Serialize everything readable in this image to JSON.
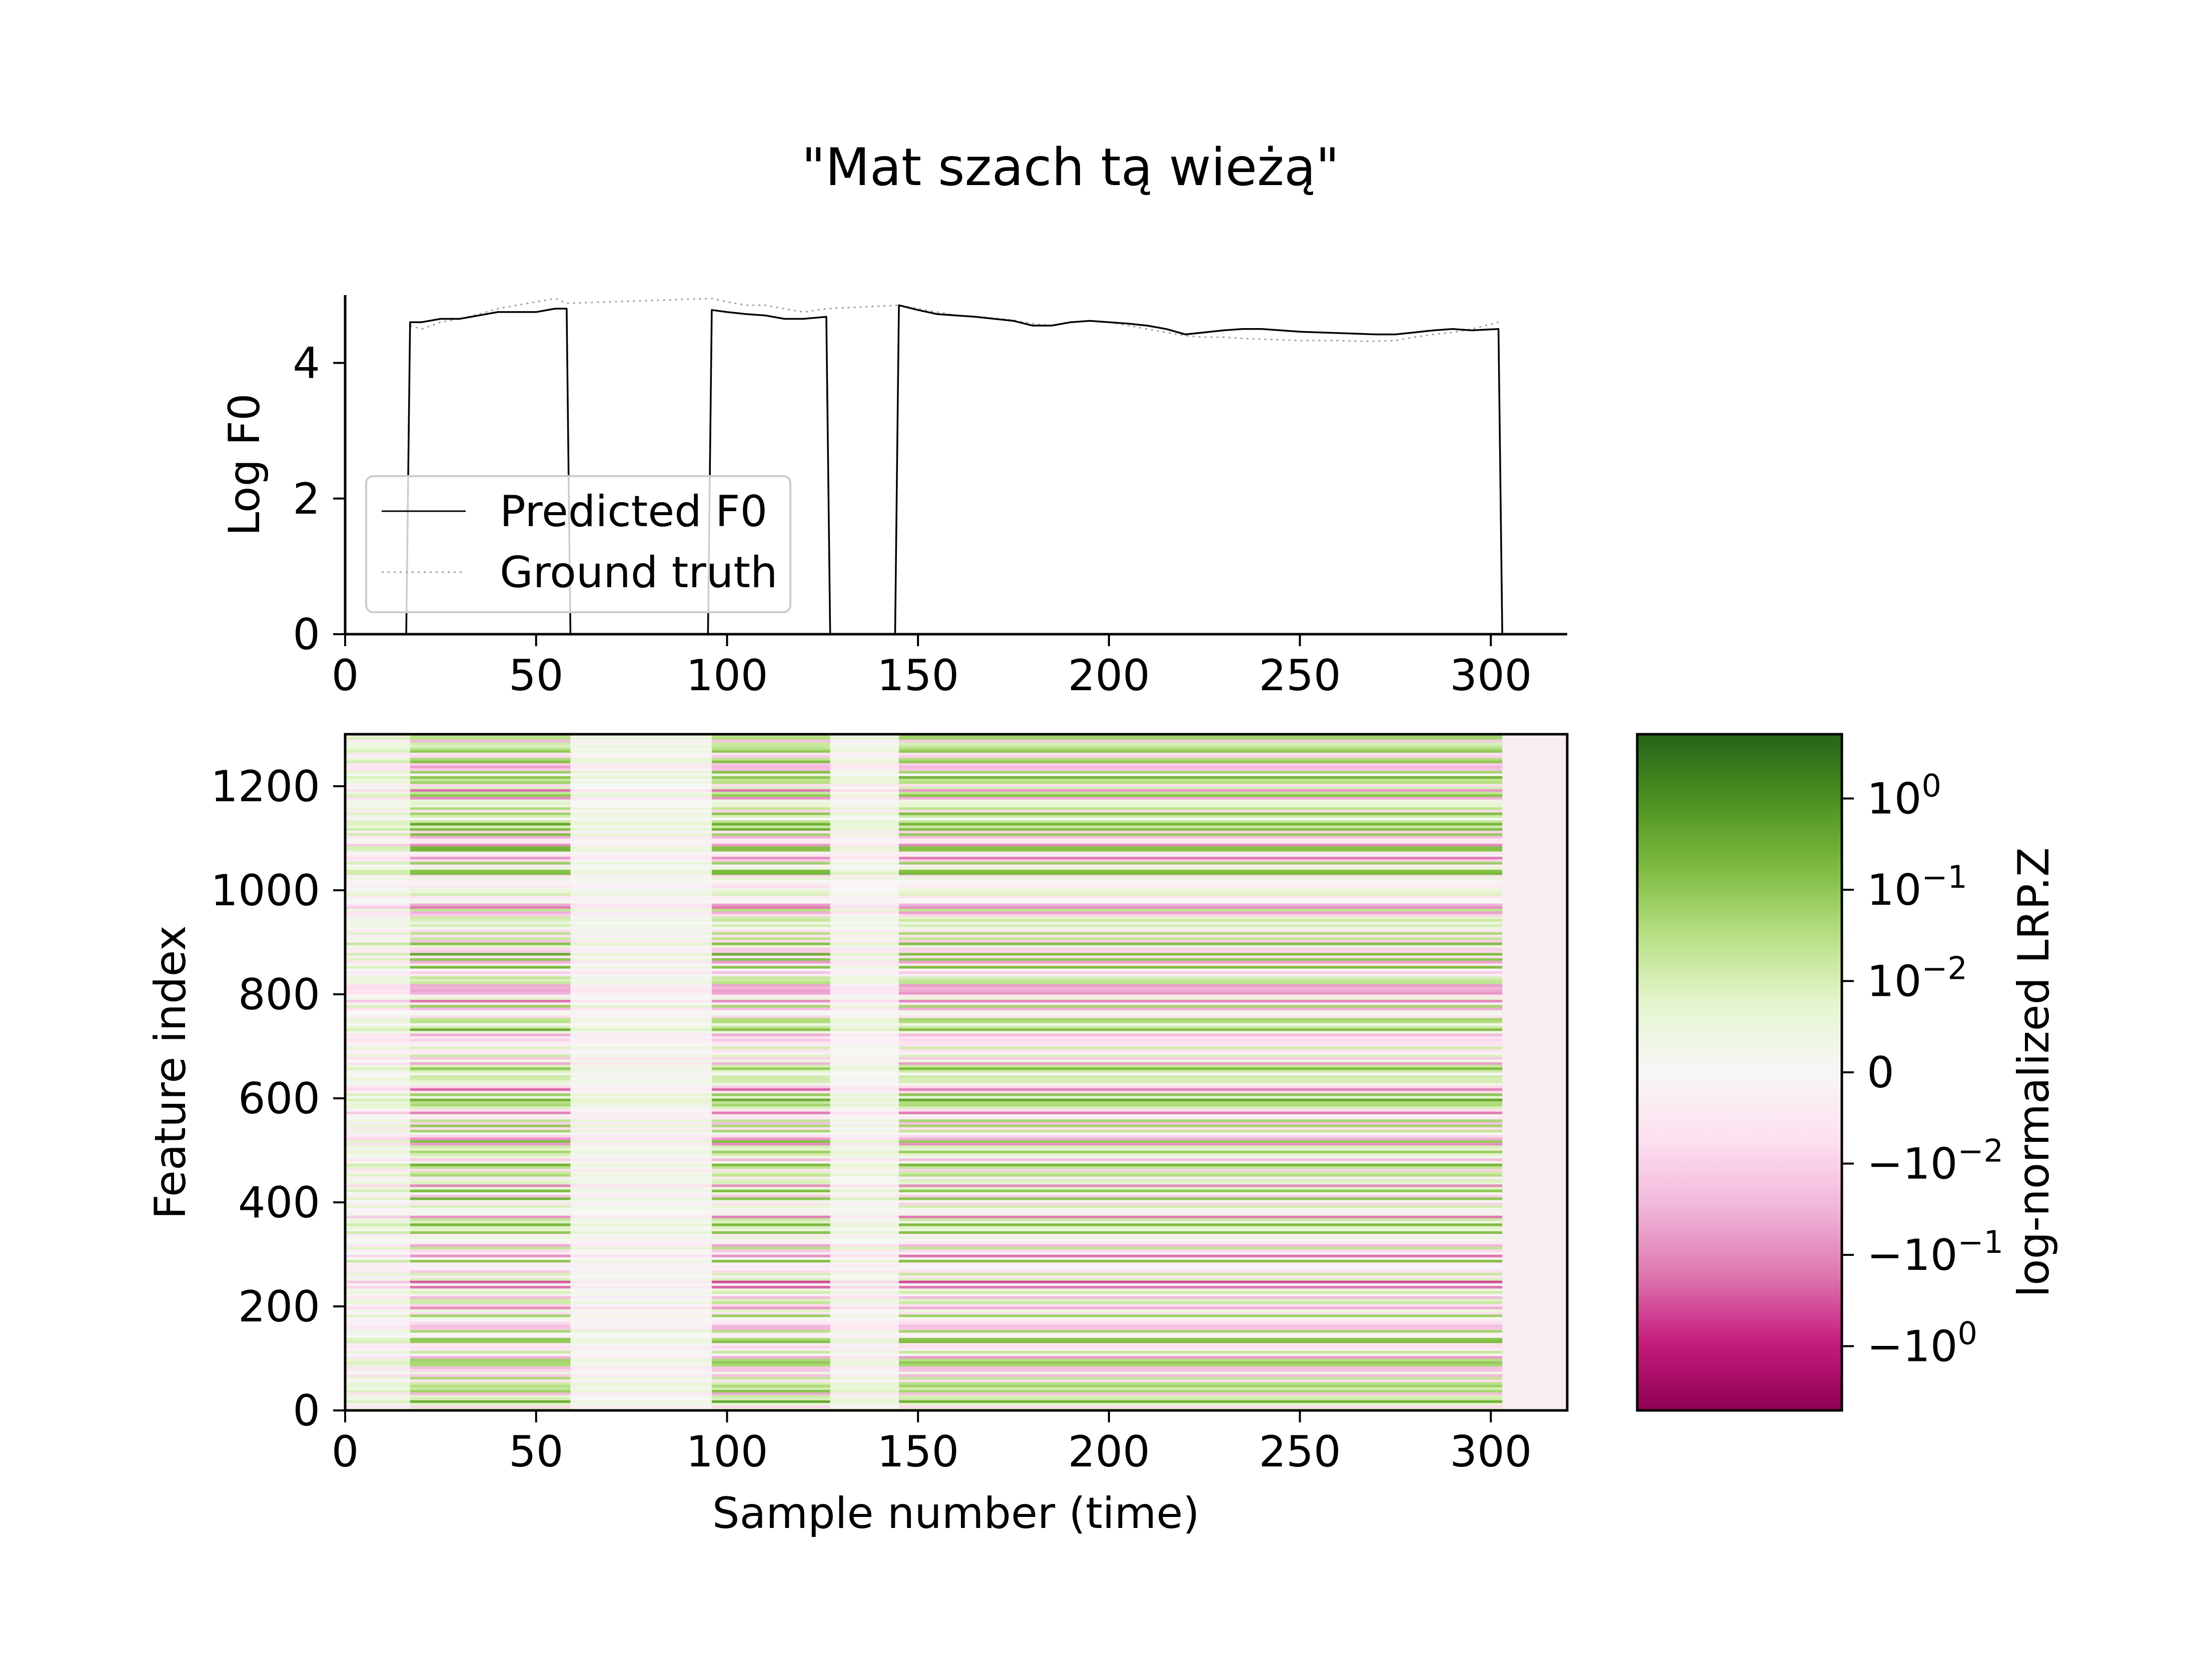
{
  "title": "\"Mat szach tą wieżą\"",
  "chart_data": [
    {
      "type": "line",
      "ylabel": "Log F0",
      "xlim": [
        0,
        320
      ],
      "ylim": [
        0,
        5
      ],
      "x_ticks": [
        "0",
        "50",
        "100",
        "150",
        "200",
        "250",
        "300"
      ],
      "y_ticks": [
        "0",
        "2",
        "4"
      ],
      "legend": {
        "placement": "lower-left",
        "entries": [
          "Predicted F0",
          "Ground truth"
        ]
      },
      "series": [
        {
          "name": "Predicted F0",
          "style": "solid",
          "color": "#000000",
          "points": [
            [
              0,
              0
            ],
            [
              16,
              0
            ],
            [
              17,
              4.6
            ],
            [
              20,
              4.6
            ],
            [
              25,
              4.65
            ],
            [
              30,
              4.65
            ],
            [
              35,
              4.7
            ],
            [
              40,
              4.75
            ],
            [
              45,
              4.75
            ],
            [
              50,
              4.75
            ],
            [
              55,
              4.8
            ],
            [
              58,
              4.8
            ],
            [
              59,
              0
            ],
            [
              95,
              0
            ],
            [
              96,
              4.78
            ],
            [
              100,
              4.75
            ],
            [
              105,
              4.72
            ],
            [
              110,
              4.7
            ],
            [
              115,
              4.65
            ],
            [
              120,
              4.65
            ],
            [
              126,
              4.68
            ],
            [
              127,
              0
            ],
            [
              144,
              0
            ],
            [
              145,
              4.85
            ],
            [
              150,
              4.78
            ],
            [
              155,
              4.72
            ],
            [
              160,
              4.7
            ],
            [
              165,
              4.68
            ],
            [
              170,
              4.65
            ],
            [
              175,
              4.62
            ],
            [
              180,
              4.55
            ],
            [
              185,
              4.55
            ],
            [
              190,
              4.6
            ],
            [
              195,
              4.62
            ],
            [
              200,
              4.6
            ],
            [
              205,
              4.58
            ],
            [
              210,
              4.55
            ],
            [
              215,
              4.5
            ],
            [
              220,
              4.42
            ],
            [
              225,
              4.45
            ],
            [
              230,
              4.48
            ],
            [
              235,
              4.5
            ],
            [
              240,
              4.5
            ],
            [
              245,
              4.48
            ],
            [
              250,
              4.46
            ],
            [
              255,
              4.45
            ],
            [
              260,
              4.44
            ],
            [
              265,
              4.43
            ],
            [
              270,
              4.42
            ],
            [
              275,
              4.42
            ],
            [
              280,
              4.45
            ],
            [
              285,
              4.48
            ],
            [
              290,
              4.5
            ],
            [
              295,
              4.48
            ],
            [
              302,
              4.5
            ],
            [
              303,
              0
            ]
          ]
        },
        {
          "name": "Ground truth",
          "style": "dotted",
          "color": "#a0a0a0",
          "points": [
            [
              17,
              4.55
            ],
            [
              20,
              4.5
            ],
            [
              25,
              4.6
            ],
            [
              30,
              4.65
            ],
            [
              35,
              4.72
            ],
            [
              40,
              4.8
            ],
            [
              45,
              4.85
            ],
            [
              50,
              4.9
            ],
            [
              55,
              4.95
            ],
            [
              58,
              4.88
            ],
            [
              96,
              4.95
            ],
            [
              100,
              4.9
            ],
            [
              105,
              4.85
            ],
            [
              110,
              4.85
            ],
            [
              115,
              4.8
            ],
            [
              120,
              4.75
            ],
            [
              126,
              4.8
            ],
            [
              145,
              4.85
            ],
            [
              150,
              4.8
            ],
            [
              155,
              4.75
            ],
            [
              160,
              4.7
            ],
            [
              165,
              4.68
            ],
            [
              170,
              4.66
            ],
            [
              175,
              4.63
            ],
            [
              180,
              4.58
            ],
            [
              185,
              4.55
            ],
            [
              190,
              4.6
            ],
            [
              195,
              4.62
            ],
            [
              200,
              4.6
            ],
            [
              205,
              4.55
            ],
            [
              210,
              4.5
            ],
            [
              215,
              4.45
            ],
            [
              220,
              4.4
            ],
            [
              225,
              4.38
            ],
            [
              230,
              4.38
            ],
            [
              235,
              4.36
            ],
            [
              240,
              4.35
            ],
            [
              245,
              4.34
            ],
            [
              250,
              4.33
            ],
            [
              255,
              4.33
            ],
            [
              260,
              4.33
            ],
            [
              265,
              4.32
            ],
            [
              270,
              4.32
            ],
            [
              275,
              4.33
            ],
            [
              280,
              4.38
            ],
            [
              285,
              4.42
            ],
            [
              290,
              4.45
            ],
            [
              295,
              4.5
            ],
            [
              302,
              4.6
            ]
          ]
        }
      ]
    },
    {
      "type": "heatmap",
      "xlabel": "Sample number (time)",
      "ylabel": "Feature index",
      "xlim": [
        0,
        320
      ],
      "ylim": [
        0,
        1300
      ],
      "x_ticks": [
        "0",
        "50",
        "100",
        "150",
        "200",
        "250",
        "300"
      ],
      "y_ticks": [
        "0",
        "200",
        "400",
        "600",
        "800",
        "1000",
        "1200"
      ],
      "colormap": "PiYG",
      "colorbar": {
        "label": "log-normalized LRP.Z",
        "ticks": [
          {
            "label": "10",
            "exp": "0"
          },
          {
            "label": "10",
            "exp": "−1"
          },
          {
            "label": "10",
            "exp": "−2"
          },
          {
            "label": "0",
            "exp": ""
          },
          {
            "label": "−10",
            "exp": "−2"
          },
          {
            "label": "−10",
            "exp": "−1"
          },
          {
            "label": "−10",
            "exp": "0"
          }
        ]
      },
      "activity_segments": [
        {
          "start": 0,
          "end": 17,
          "level": 0.45
        },
        {
          "start": 17,
          "end": 59,
          "level": 1.0
        },
        {
          "start": 59,
          "end": 96,
          "level": 0.25
        },
        {
          "start": 96,
          "end": 127,
          "level": 1.0
        },
        {
          "start": 127,
          "end": 145,
          "level": 0.3
        },
        {
          "start": 145,
          "end": 303,
          "level": 1.0
        },
        {
          "start": 303,
          "end": 320,
          "level": 0.0
        }
      ]
    }
  ]
}
